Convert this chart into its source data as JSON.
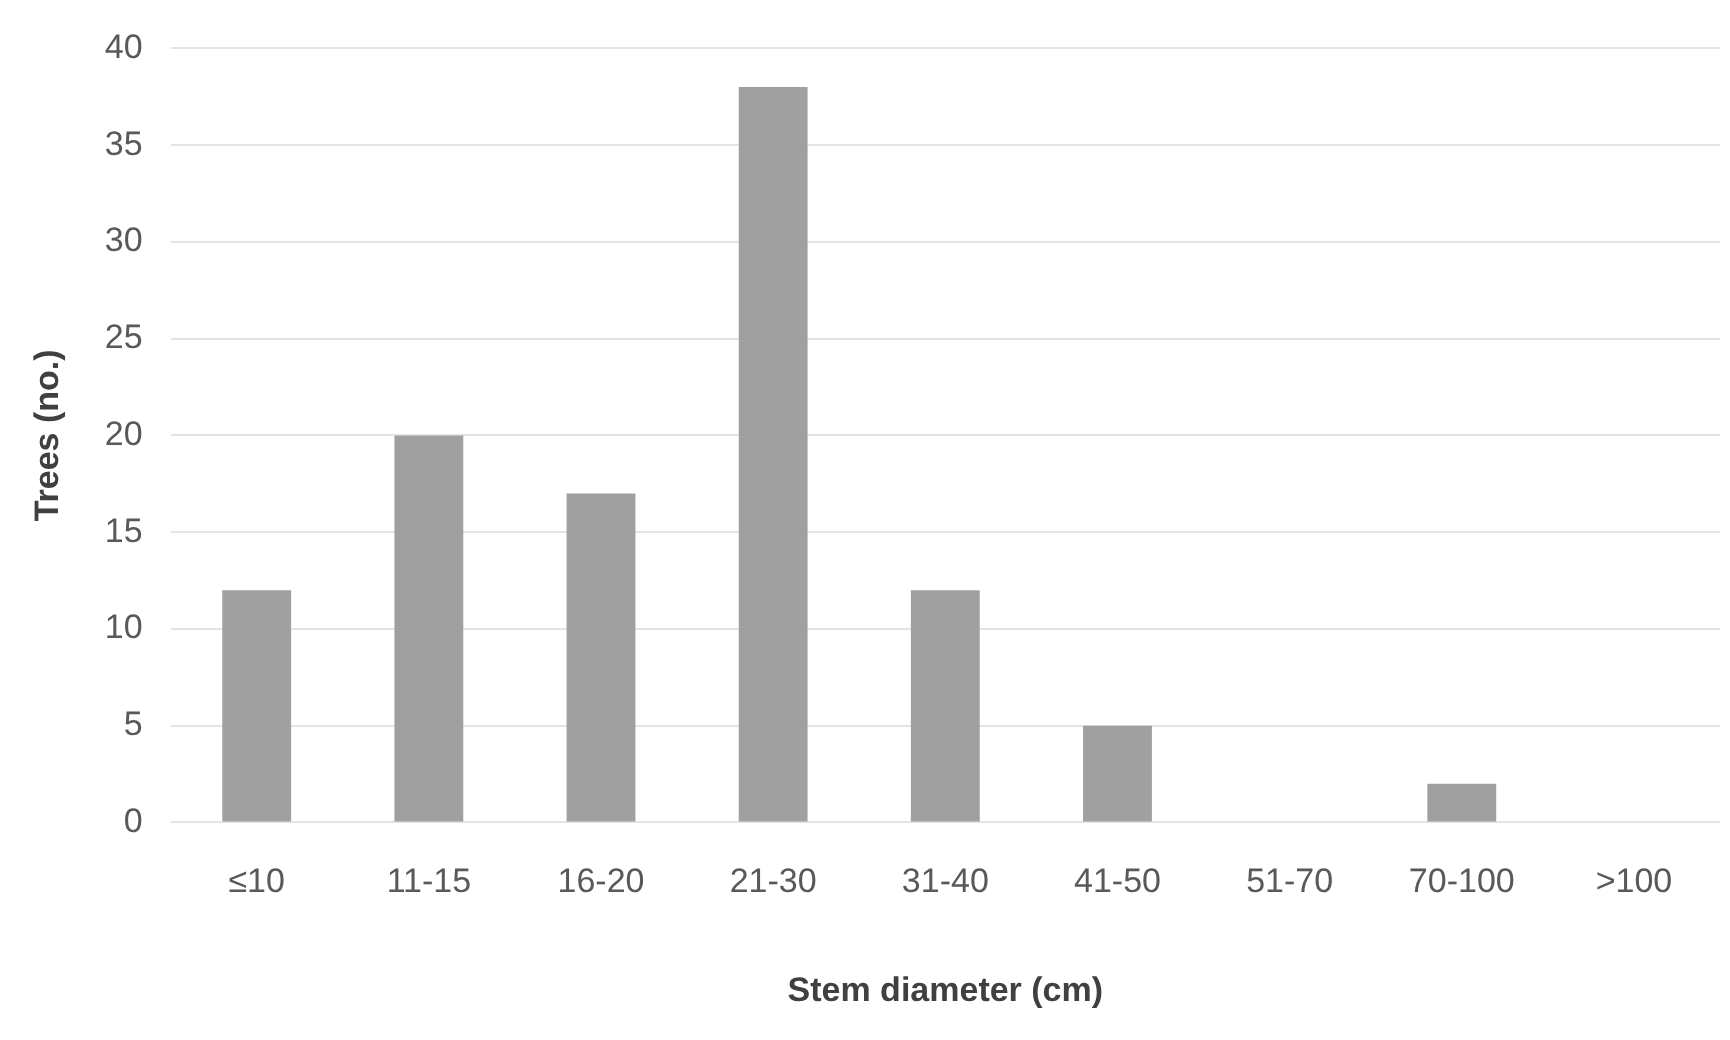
{
  "chart_data": {
    "type": "bar",
    "xlabel": "Stem diameter (cm)",
    "ylabel": "Trees (no.)",
    "categories": [
      "≤10",
      "11-15",
      "16-20",
      "21-30",
      "31-40",
      "41-50",
      "51-70",
      "70-100",
      ">100"
    ],
    "values": [
      12,
      20,
      17,
      38,
      12,
      5,
      0,
      2,
      0
    ],
    "color": "#a0a0a0",
    "ylim": [
      0,
      40
    ],
    "yticks": [
      0,
      5,
      10,
      15,
      20,
      25,
      30,
      35,
      40
    ],
    "grid": "y",
    "legend": false
  }
}
